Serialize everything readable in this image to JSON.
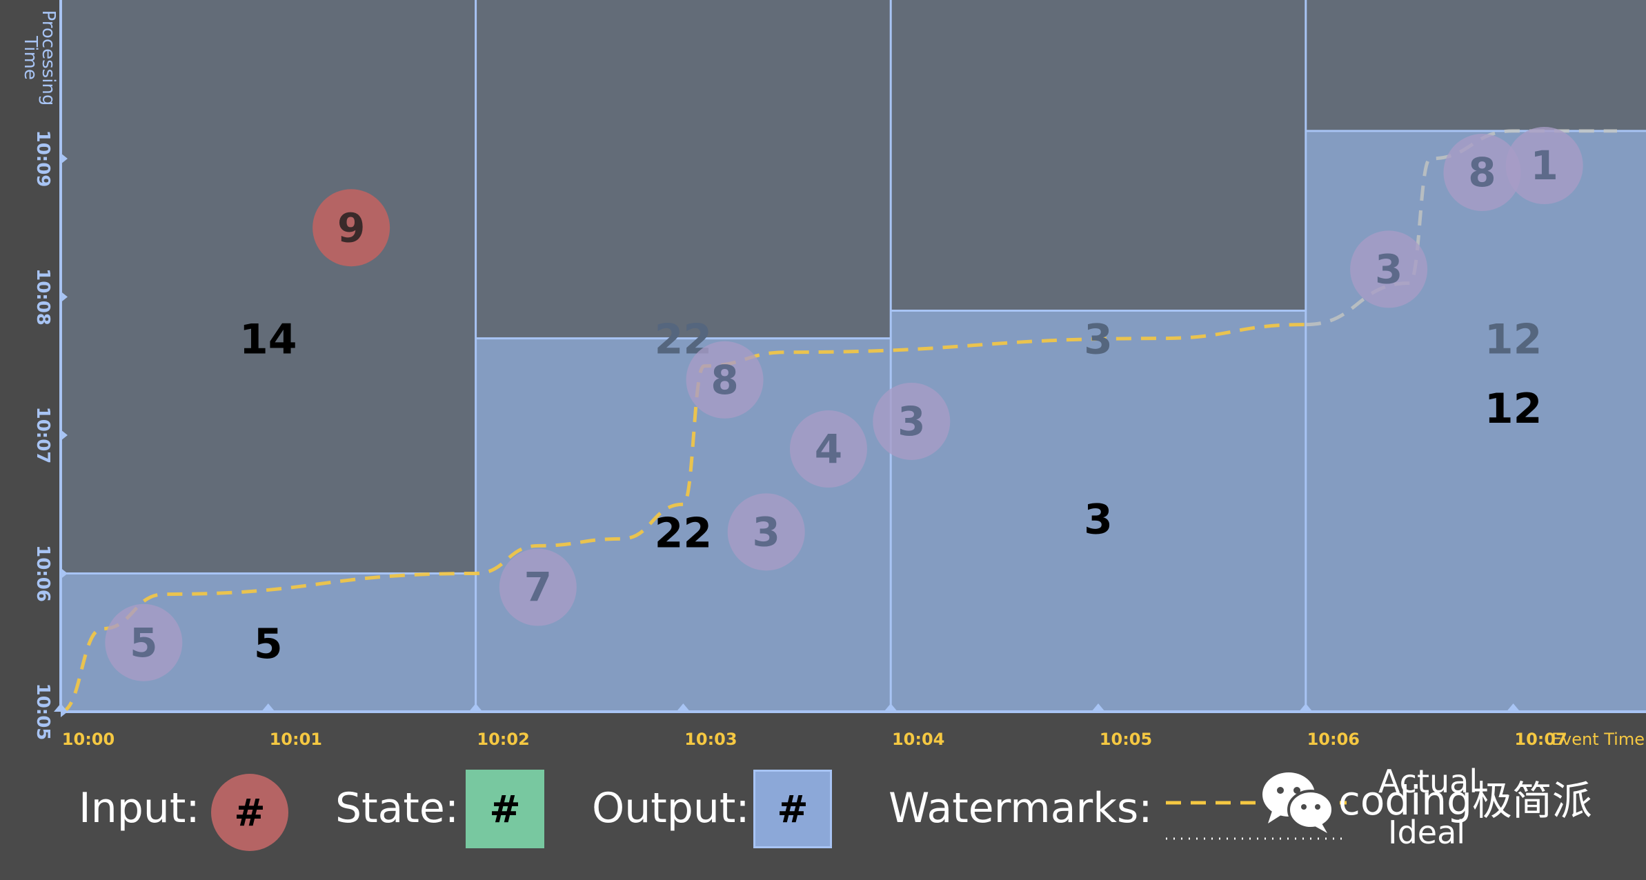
{
  "colors": {
    "background": "#4a4a4a",
    "pane_dark": "#636c78",
    "output_fill": "#849cc1",
    "grid_line": "#a8c4f4",
    "input_red": "#b56464",
    "state_green": "#78c8a0",
    "output_blue": "#8ca8d8",
    "watermark_actual": "#f5c842",
    "faded_circle": "#a89cc6",
    "event_time_axis": "#f5c842",
    "processing_time_axis": "#a8c4f4"
  },
  "axes": {
    "y_title": "Processing Time",
    "y_ticks": [
      "10:05",
      "10:06",
      "10:07",
      "10:08",
      "10:09"
    ],
    "x_title": "Event Time",
    "x_ticks": [
      "10:00",
      "10:01",
      "10:02",
      "10:03",
      "10:04",
      "10:05",
      "10:06",
      "10:07"
    ]
  },
  "windows": [
    {
      "start": "10:00",
      "end": "10:02",
      "dark_top": "10:06",
      "outputs": [
        {
          "value": "14",
          "time": "10:07.7",
          "style": "on-dark"
        },
        {
          "value": "5",
          "time": "10:05.5",
          "style": "black"
        }
      ]
    },
    {
      "start": "10:02",
      "end": "10:04",
      "dark_top": "10:07.7",
      "outputs": [
        {
          "value": "22",
          "time": "10:07.7",
          "style": "faded"
        },
        {
          "value": "22",
          "time": "10:06.3",
          "style": "black"
        }
      ]
    },
    {
      "start": "10:04",
      "end": "10:06",
      "dark_top": "10:07.9",
      "outputs": [
        {
          "value": "3",
          "time": "10:07.7",
          "style": "faded"
        },
        {
          "value": "3",
          "time": "10:06.4",
          "style": "black"
        }
      ]
    },
    {
      "start": "10:06",
      "end": "10:08",
      "dark_top": "10:09.2",
      "outputs": [
        {
          "value": "12",
          "time": "10:07.7",
          "style": "faded"
        },
        {
          "value": "12",
          "time": "10:07.2",
          "style": "black"
        }
      ]
    }
  ],
  "inputs": [
    {
      "value": "5",
      "event": "10:00.4",
      "proc": "10:05.5",
      "state": "faded"
    },
    {
      "value": "9",
      "event": "10:01.4",
      "proc": "10:08.5",
      "state": "pending"
    },
    {
      "value": "7",
      "event": "10:02.3",
      "proc": "10:05.9",
      "state": "faded"
    },
    {
      "value": "8",
      "event": "10:03.2",
      "proc": "10:07.4",
      "state": "faded"
    },
    {
      "value": "3",
      "event": "10:03.4",
      "proc": "10:06.3",
      "state": "faded"
    },
    {
      "value": "4",
      "event": "10:03.7",
      "proc": "10:06.9",
      "state": "faded"
    },
    {
      "value": "3",
      "event": "10:04.1",
      "proc": "10:07.1",
      "state": "faded"
    },
    {
      "value": "3",
      "event": "10:06.4",
      "proc": "10:08.2",
      "state": "faded"
    },
    {
      "value": "8",
      "event": "10:06.85",
      "proc": "10:08.9",
      "state": "faded"
    },
    {
      "value": "1",
      "event": "10:07.15",
      "proc": "10:08.95",
      "state": "faded"
    }
  ],
  "watermark_actual": {
    "points": [
      {
        "event": "10:00",
        "proc": "10:05.0"
      },
      {
        "event": "10:00.2",
        "proc": "10:05.6"
      },
      {
        "event": "10:00.5",
        "proc": "10:05.85"
      },
      {
        "event": "10:02.0",
        "proc": "10:06.0"
      },
      {
        "event": "10:02.3",
        "proc": "10:06.2"
      },
      {
        "event": "10:02.7",
        "proc": "10:06.25"
      },
      {
        "event": "10:03.0",
        "proc": "10:06.5"
      },
      {
        "event": "10:03.1",
        "proc": "10:07.5"
      },
      {
        "event": "10:03.5",
        "proc": "10:07.6"
      },
      {
        "event": "10:05.3",
        "proc": "10:07.7"
      },
      {
        "event": "10:06.0",
        "proc": "10:07.8"
      }
    ],
    "continuation": [
      {
        "event": "10:06.0",
        "proc": "10:07.8"
      },
      {
        "event": "10:06.5",
        "proc": "10:08.1"
      },
      {
        "event": "10:06.6",
        "proc": "10:09.0"
      },
      {
        "event": "10:07.0",
        "proc": "10:09.2"
      },
      {
        "event": "10:07.5",
        "proc": "10:09.2"
      }
    ]
  },
  "legend": {
    "input_label": "Input:",
    "input_symbol": "#",
    "state_label": "State:",
    "state_symbol": "#",
    "output_label": "Output:",
    "output_symbol": "#",
    "watermarks_label": "Watermarks:",
    "actual_label": "Actual",
    "ideal_label": "Ideal"
  },
  "brand": {
    "text": "coding极简派",
    "icon": "wechat-icon"
  }
}
